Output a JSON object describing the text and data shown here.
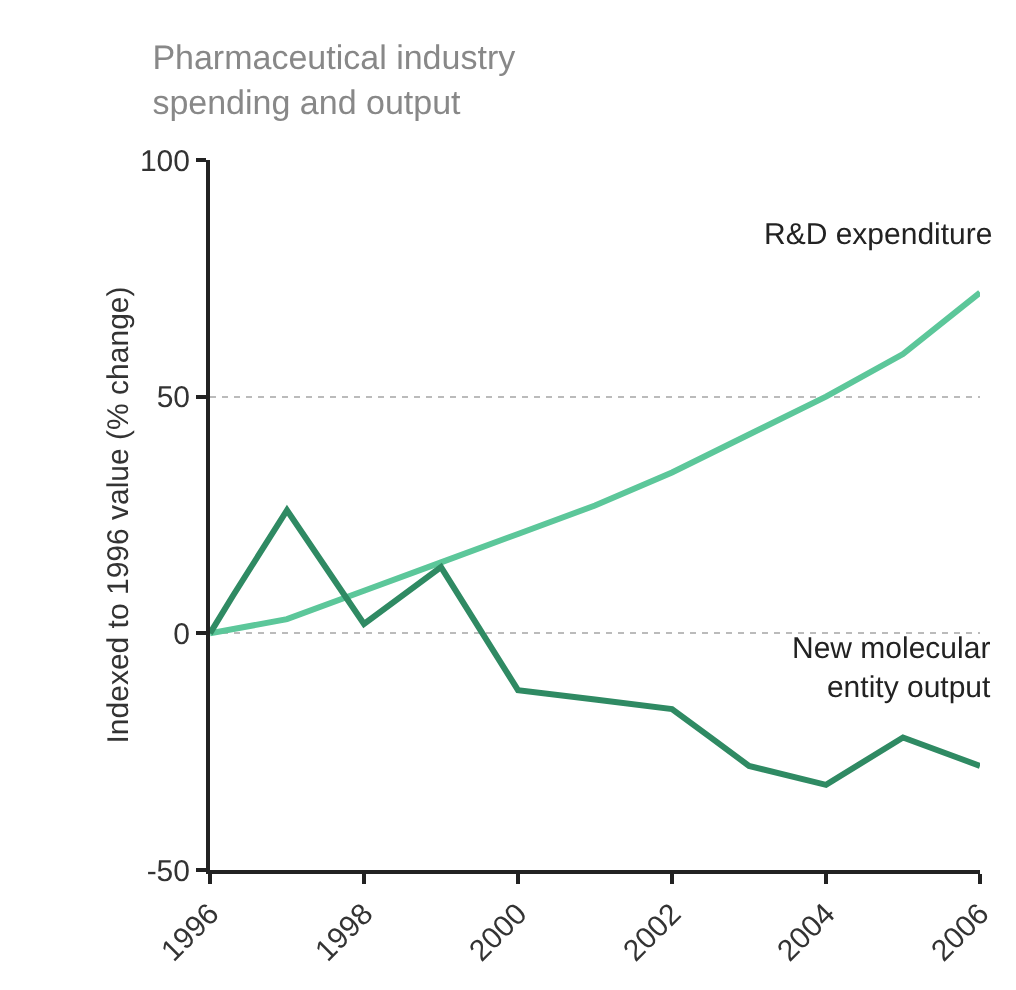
{
  "chart_data": {
    "type": "line",
    "title": "Pharmaceutical industry\nspending and output",
    "ylabel": "Indexed to 1996 value (% change)",
    "xlim": [
      1996,
      2006
    ],
    "xticks": [
      1996,
      1998,
      2000,
      2002,
      2004,
      2006
    ],
    "ylim": [
      -50,
      100
    ],
    "yticks": [
      -50,
      0,
      50,
      100
    ],
    "grid": "y",
    "legend": false,
    "marker": "none",
    "series": [
      {
        "name": "R&D expenditure",
        "color": "#5cc79a",
        "x": [
          1996,
          1997,
          1998,
          1999,
          2000,
          2001,
          2002,
          2003,
          2004,
          2005,
          2006
        ],
        "values": [
          0,
          3,
          9,
          15,
          21,
          27,
          34,
          42,
          50,
          59,
          72
        ]
      },
      {
        "name": "New molecular\nentity output",
        "color": "#2f8a63",
        "x": [
          1996,
          1996.3,
          1997,
          1998,
          1999,
          2000,
          2001,
          2002,
          2002.5,
          2003,
          2004,
          2005,
          2006
        ],
        "values": [
          0,
          8,
          26,
          2,
          14,
          -12,
          -14,
          -16,
          -22,
          -28,
          -32,
          -22,
          -28
        ]
      }
    ]
  }
}
